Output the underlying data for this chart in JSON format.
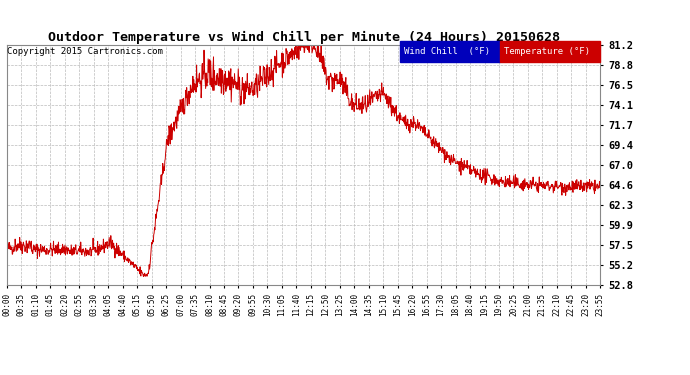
{
  "title": "Outdoor Temperature vs Wind Chill per Minute (24 Hours) 20150628",
  "copyright_text": "Copyright 2015 Cartronics.com",
  "legend_labels": [
    "Wind Chill  (°F)",
    "Temperature (°F)"
  ],
  "legend_bg_colors": [
    "#0000bb",
    "#cc0000"
  ],
  "line_color": "#cc0000",
  "background_color": "#ffffff",
  "plot_bg_color": "#ffffff",
  "grid_color": "#bbbbbb",
  "ytick_labels": [
    81.2,
    78.8,
    76.5,
    74.1,
    71.7,
    69.4,
    67.0,
    64.6,
    62.3,
    59.9,
    57.5,
    55.2,
    52.8
  ],
  "ymin": 52.8,
  "ymax": 81.2,
  "xtick_labels": [
    "00:00",
    "00:35",
    "01:10",
    "01:45",
    "02:20",
    "02:55",
    "03:30",
    "04:05",
    "04:40",
    "05:15",
    "05:50",
    "06:25",
    "07:00",
    "07:35",
    "08:10",
    "08:45",
    "09:20",
    "09:55",
    "10:30",
    "11:05",
    "11:40",
    "12:15",
    "12:50",
    "13:25",
    "14:00",
    "14:35",
    "15:10",
    "15:45",
    "16:20",
    "16:55",
    "17:30",
    "18:05",
    "18:40",
    "19:15",
    "19:50",
    "20:25",
    "21:00",
    "21:35",
    "22:10",
    "22:45",
    "23:20",
    "23:55"
  ]
}
